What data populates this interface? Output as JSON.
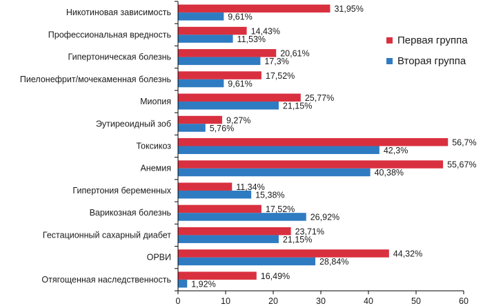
{
  "chart_data": {
    "type": "bar",
    "orientation": "horizontal",
    "categories": [
      "Никотиновая зависимость",
      "Профессиональная вредность",
      "Гипертоническая болезнь",
      "Пиелонефрит/мочекаменная болезнь",
      "Миопия",
      "Эутиреоидный зоб",
      "Токсикоз",
      "Анемия",
      "Гипертония беременных",
      "Варикозная болезнь",
      "Гестационный сахарный диабет",
      "ОРВИ",
      "Отягощенная наследственность"
    ],
    "series": [
      {
        "name": "Первая группа",
        "color": "#d9303f",
        "values": [
          31.95,
          14.43,
          20.61,
          17.52,
          25.77,
          9.27,
          56.7,
          55.67,
          11.34,
          17.52,
          23.71,
          44.32,
          16.49
        ],
        "labels": [
          "31,95%",
          "14,43%",
          "20,61%",
          "17,52%",
          "25,77%",
          "9,27%",
          "56,7%",
          "55,67%",
          "11,34%",
          "17,52%",
          "23,71%",
          "44,32%",
          "16,49%"
        ]
      },
      {
        "name": "Вторая группа",
        "color": "#2f7bc2",
        "values": [
          9.61,
          11.53,
          17.3,
          9.61,
          21.15,
          5.76,
          42.3,
          40.38,
          15.38,
          26.92,
          21.15,
          28.84,
          1.92
        ],
        "labels": [
          "9,61%",
          "11,53%",
          "17,3%",
          "9,61%",
          "21,15%",
          "5,76%",
          "42,3%",
          "40,38%",
          "15,38%",
          "26,92%",
          "21,15%",
          "28,84%",
          "1,92%"
        ]
      }
    ],
    "xlim": [
      0,
      60
    ],
    "xticks": [
      "0",
      "10",
      "20",
      "30",
      "40",
      "50",
      "60"
    ],
    "grid": false,
    "legend_position": "right"
  }
}
